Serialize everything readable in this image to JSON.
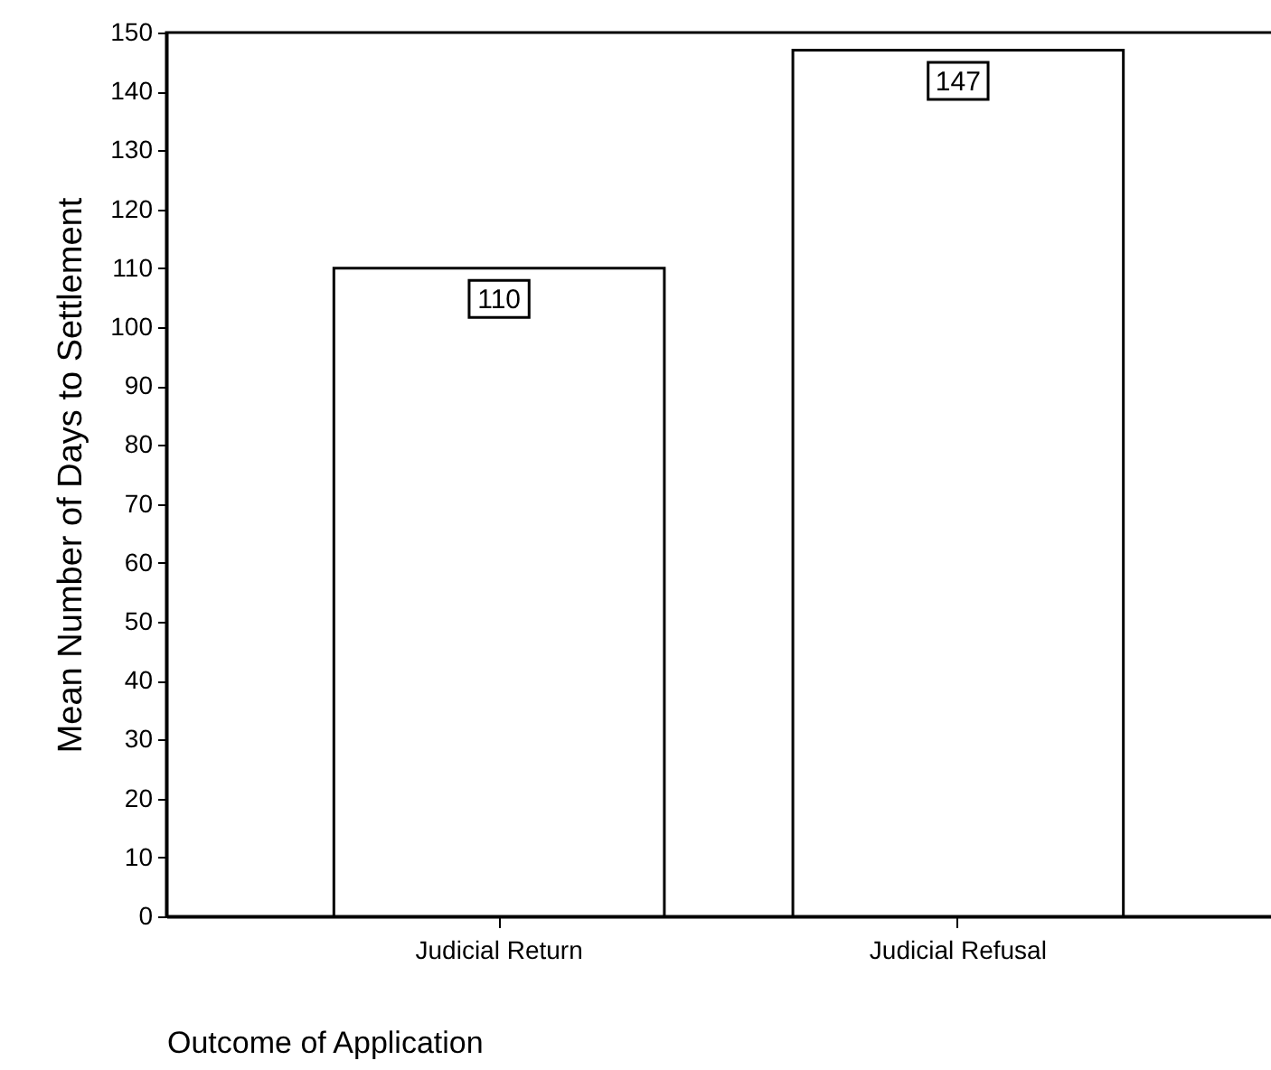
{
  "chart_data": {
    "type": "bar",
    "xlabel": "Outcome of Application",
    "ylabel": "Mean Number of Days to Settlement",
    "categories": [
      "Judicial Return",
      "Judicial Refusal"
    ],
    "values": [
      110,
      147
    ],
    "color": "#ffffff",
    "ylim": [
      0,
      150
    ],
    "yticks": [
      0,
      10,
      20,
      30,
      40,
      50,
      60,
      70,
      80,
      90,
      100,
      110,
      120,
      130,
      140,
      150
    ],
    "data_labels": true,
    "grid": false
  }
}
